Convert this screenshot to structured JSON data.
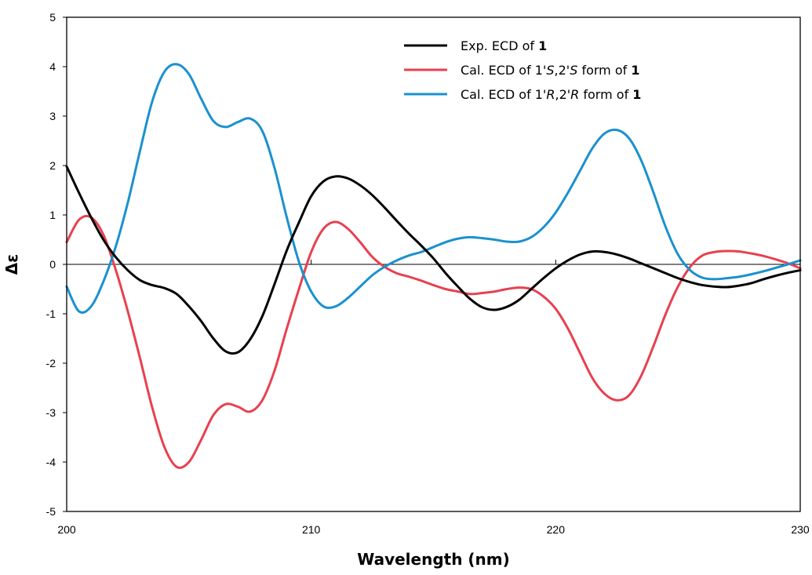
{
  "chart_data": {
    "type": "line",
    "title": "",
    "xlabel": "Wavelength (nm)",
    "ylabel": "Δε",
    "xlim": [
      200,
      230
    ],
    "ylim": [
      -5,
      5
    ],
    "x_ticks": [
      "200",
      "210",
      "220",
      "230"
    ],
    "y_ticks": [
      "5",
      "4",
      "3",
      "2",
      "1",
      "0",
      "-1",
      "-2",
      "-3",
      "-4",
      "-5"
    ],
    "grid": false,
    "legend_position": "top-right",
    "series": [
      {
        "name_parts": [
          {
            "text": "Exp. ECD of "
          },
          {
            "text": "1",
            "style": "bold"
          }
        ],
        "color": "#000000",
        "points": [
          [
            200,
            1.98
          ],
          [
            200.5,
            1.45
          ],
          [
            201,
            0.95
          ],
          [
            201.5,
            0.5
          ],
          [
            202,
            0.15
          ],
          [
            202.5,
            -0.12
          ],
          [
            203,
            -0.32
          ],
          [
            203.5,
            -0.42
          ],
          [
            204,
            -0.48
          ],
          [
            204.5,
            -0.6
          ],
          [
            205,
            -0.85
          ],
          [
            205.5,
            -1.15
          ],
          [
            206,
            -1.5
          ],
          [
            206.5,
            -1.76
          ],
          [
            207,
            -1.78
          ],
          [
            207.5,
            -1.52
          ],
          [
            208,
            -1.05
          ],
          [
            208.5,
            -0.4
          ],
          [
            209,
            0.28
          ],
          [
            209.5,
            0.85
          ],
          [
            210,
            1.38
          ],
          [
            210.5,
            1.68
          ],
          [
            211,
            1.78
          ],
          [
            211.5,
            1.74
          ],
          [
            212,
            1.6
          ],
          [
            212.5,
            1.4
          ],
          [
            213,
            1.15
          ],
          [
            213.5,
            0.88
          ],
          [
            214,
            0.62
          ],
          [
            214.5,
            0.38
          ],
          [
            215,
            0.12
          ],
          [
            215.5,
            -0.18
          ],
          [
            216,
            -0.45
          ],
          [
            216.5,
            -0.7
          ],
          [
            217,
            -0.87
          ],
          [
            217.5,
            -0.92
          ],
          [
            218,
            -0.86
          ],
          [
            218.5,
            -0.72
          ],
          [
            219,
            -0.5
          ],
          [
            219.5,
            -0.28
          ],
          [
            220,
            -0.08
          ],
          [
            220.5,
            0.08
          ],
          [
            221,
            0.2
          ],
          [
            221.5,
            0.26
          ],
          [
            222,
            0.25
          ],
          [
            222.5,
            0.2
          ],
          [
            223,
            0.12
          ],
          [
            223.5,
            0.02
          ],
          [
            224,
            -0.08
          ],
          [
            224.5,
            -0.18
          ],
          [
            225,
            -0.28
          ],
          [
            225.5,
            -0.36
          ],
          [
            226,
            -0.42
          ],
          [
            226.5,
            -0.45
          ],
          [
            227,
            -0.46
          ],
          [
            227.5,
            -0.43
          ],
          [
            228,
            -0.38
          ],
          [
            228.5,
            -0.3
          ],
          [
            229,
            -0.23
          ],
          [
            229.5,
            -0.17
          ],
          [
            230,
            -0.12
          ]
        ]
      },
      {
        "name_parts": [
          {
            "text": "Cal. ECD of 1'"
          },
          {
            "text": "S",
            "style": "italic"
          },
          {
            "text": ",2'"
          },
          {
            "text": "S",
            "style": "italic"
          },
          {
            "text": " form of "
          },
          {
            "text": "1",
            "style": "bold"
          }
        ],
        "color": "#e8404f",
        "points": [
          [
            200,
            0.45
          ],
          [
            200.5,
            0.9
          ],
          [
            201,
            0.95
          ],
          [
            201.5,
            0.6
          ],
          [
            202,
            -0.1
          ],
          [
            202.5,
            -0.95
          ],
          [
            203,
            -1.9
          ],
          [
            203.5,
            -2.9
          ],
          [
            204,
            -3.7
          ],
          [
            204.5,
            -4.1
          ],
          [
            205,
            -4.0
          ],
          [
            205.5,
            -3.55
          ],
          [
            206,
            -3.05
          ],
          [
            206.5,
            -2.83
          ],
          [
            207,
            -2.88
          ],
          [
            207.5,
            -2.98
          ],
          [
            208,
            -2.75
          ],
          [
            208.5,
            -2.15
          ],
          [
            209,
            -1.3
          ],
          [
            209.5,
            -0.5
          ],
          [
            210,
            0.25
          ],
          [
            210.5,
            0.72
          ],
          [
            211,
            0.86
          ],
          [
            211.5,
            0.72
          ],
          [
            212,
            0.45
          ],
          [
            212.5,
            0.15
          ],
          [
            213,
            -0.05
          ],
          [
            213.5,
            -0.18
          ],
          [
            214,
            -0.25
          ],
          [
            214.5,
            -0.33
          ],
          [
            215,
            -0.42
          ],
          [
            215.5,
            -0.5
          ],
          [
            216,
            -0.55
          ],
          [
            216.5,
            -0.6
          ],
          [
            217,
            -0.58
          ],
          [
            217.5,
            -0.55
          ],
          [
            218,
            -0.5
          ],
          [
            218.5,
            -0.47
          ],
          [
            219,
            -0.5
          ],
          [
            219.5,
            -0.65
          ],
          [
            220,
            -0.9
          ],
          [
            220.5,
            -1.3
          ],
          [
            221,
            -1.8
          ],
          [
            221.5,
            -2.3
          ],
          [
            222,
            -2.62
          ],
          [
            222.5,
            -2.75
          ],
          [
            223,
            -2.65
          ],
          [
            223.5,
            -2.25
          ],
          [
            224,
            -1.65
          ],
          [
            224.5,
            -1.0
          ],
          [
            225,
            -0.45
          ],
          [
            225.5,
            -0.05
          ],
          [
            226,
            0.18
          ],
          [
            226.5,
            0.25
          ],
          [
            227,
            0.27
          ],
          [
            227.5,
            0.26
          ],
          [
            228,
            0.22
          ],
          [
            228.5,
            0.17
          ],
          [
            229,
            0.1
          ],
          [
            229.5,
            0.02
          ],
          [
            230,
            -0.08
          ]
        ]
      },
      {
        "name_parts": [
          {
            "text": "Cal. ECD of 1'"
          },
          {
            "text": "R",
            "style": "italic"
          },
          {
            "text": ",2'"
          },
          {
            "text": "R",
            "style": "italic"
          },
          {
            "text": " form of "
          },
          {
            "text": "1",
            "style": "bold"
          }
        ],
        "color": "#1a91cf",
        "points": [
          [
            200,
            -0.45
          ],
          [
            200.5,
            -0.95
          ],
          [
            201,
            -0.85
          ],
          [
            201.5,
            -0.35
          ],
          [
            202,
            0.35
          ],
          [
            202.5,
            1.25
          ],
          [
            203,
            2.3
          ],
          [
            203.5,
            3.3
          ],
          [
            204,
            3.9
          ],
          [
            204.5,
            4.05
          ],
          [
            205,
            3.85
          ],
          [
            205.5,
            3.35
          ],
          [
            206,
            2.9
          ],
          [
            206.5,
            2.78
          ],
          [
            207,
            2.88
          ],
          [
            207.5,
            2.95
          ],
          [
            208,
            2.7
          ],
          [
            208.5,
            1.95
          ],
          [
            209,
            0.95
          ],
          [
            209.5,
            0.05
          ],
          [
            210,
            -0.55
          ],
          [
            210.5,
            -0.85
          ],
          [
            211,
            -0.85
          ],
          [
            211.5,
            -0.68
          ],
          [
            212,
            -0.45
          ],
          [
            212.5,
            -0.22
          ],
          [
            213,
            -0.05
          ],
          [
            213.5,
            0.08
          ],
          [
            214,
            0.18
          ],
          [
            214.5,
            0.25
          ],
          [
            215,
            0.35
          ],
          [
            215.5,
            0.45
          ],
          [
            216,
            0.52
          ],
          [
            216.5,
            0.55
          ],
          [
            217,
            0.53
          ],
          [
            217.5,
            0.5
          ],
          [
            218,
            0.46
          ],
          [
            218.5,
            0.46
          ],
          [
            219,
            0.55
          ],
          [
            219.5,
            0.75
          ],
          [
            220,
            1.05
          ],
          [
            220.5,
            1.45
          ],
          [
            221,
            1.9
          ],
          [
            221.5,
            2.35
          ],
          [
            222,
            2.65
          ],
          [
            222.5,
            2.72
          ],
          [
            223,
            2.55
          ],
          [
            223.5,
            2.1
          ],
          [
            224,
            1.45
          ],
          [
            224.5,
            0.75
          ],
          [
            225,
            0.2
          ],
          [
            225.5,
            -0.12
          ],
          [
            226,
            -0.27
          ],
          [
            226.5,
            -0.3
          ],
          [
            227,
            -0.28
          ],
          [
            227.5,
            -0.25
          ],
          [
            228,
            -0.2
          ],
          [
            228.5,
            -0.14
          ],
          [
            229,
            -0.07
          ],
          [
            229.5,
            0.0
          ],
          [
            230,
            0.08
          ]
        ]
      }
    ]
  }
}
